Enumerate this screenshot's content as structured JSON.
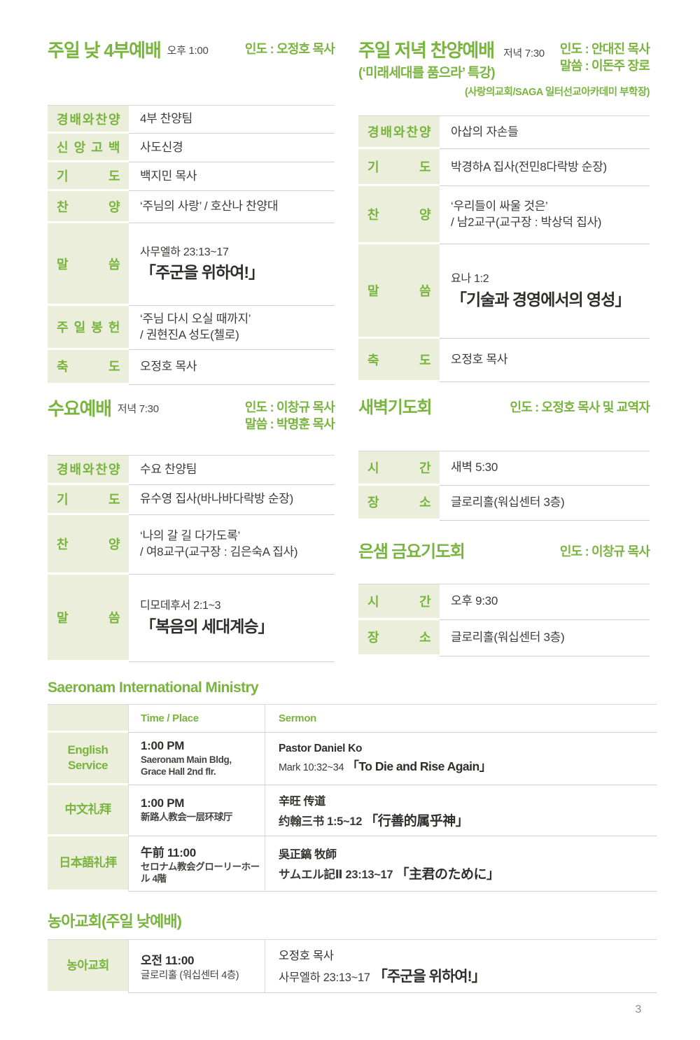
{
  "colors": {
    "accent_green": "#78b43e",
    "label_bg": "#eaeedb",
    "divider": "#cfcfcd",
    "text": "#3b3b39"
  },
  "page": {
    "number": "3"
  },
  "sections": {
    "sunday_day": {
      "title": "주일 낮 4부예배",
      "time": "오후 1:00",
      "leader": "인도 : 오정호 목사",
      "rows": [
        {
          "label": "경배와찬양",
          "text": "4부 찬양팀"
        },
        {
          "label": "신앙고백",
          "text": "사도신경"
        },
        {
          "label": "기도",
          "text": "백지민 목사"
        },
        {
          "label": "찬양",
          "text": "‘주님의 사랑’ / 호산나 찬양대"
        },
        {
          "label": "말씀",
          "scripture": "사무엘하 23:13~17",
          "sermon": "「주군을 위하여!」"
        },
        {
          "label": "주일봉헌",
          "text": "‘주님 다시 오실 때까지’",
          "text2": "/ 권현진A 성도(첼로)"
        },
        {
          "label": "축도",
          "text": "오정호 목사"
        }
      ]
    },
    "sunday_evening": {
      "title": "주일 저녁 찬양예배",
      "time": "저녁 7:30",
      "subtitle": "(‘미래세대를 품으라’ 특강)",
      "leader": "인도 : 안대진 목사",
      "speaker": "말씀 : 이돈주 장로",
      "speaker_note": "(사랑의교회/SAGA 일터선교아카데미 부학장)",
      "rows": [
        {
          "label": "경배와찬양",
          "text": "아삽의 자손들"
        },
        {
          "label": "기도",
          "text": "박경하A 집사(전민8다락방 순장)"
        },
        {
          "label": "찬양",
          "text": "‘우리들이 싸울 것은’",
          "text2": "/ 남2교구(교구장 : 박상덕 집사)"
        },
        {
          "label": "말씀",
          "scripture": "요나 1:2",
          "sermon": "「기술과 경영에서의 영성」"
        },
        {
          "label": "축도",
          "text": "오정호 목사"
        }
      ]
    },
    "wednesday": {
      "title": "수요예배",
      "time": "저녁 7:30",
      "leader": "인도 : 이창규 목사",
      "speaker": "말씀 : 박명훈 목사",
      "rows": [
        {
          "label": "경배와찬양",
          "text": "수요 찬양팀"
        },
        {
          "label": "기도",
          "text": "유수영 집사(바나바다락방 순장)"
        },
        {
          "label": "찬양",
          "text": "‘나의 갈 길 다가도록’",
          "text2": "/ 여8교구(교구장 : 김은숙A 집사)"
        },
        {
          "label": "말씀",
          "scripture": "디모데후서 2:1~3",
          "sermon": "「복음의 세대계승」"
        }
      ]
    },
    "dawn_prayer": {
      "title": "새벽기도회",
      "leader": "인도 : 오정호 목사 및 교역자",
      "rows": [
        {
          "label": "시간",
          "text": "새벽 5:30"
        },
        {
          "label": "장소",
          "text": "글로리홀(워십센터 3층)"
        }
      ]
    },
    "friday_prayer": {
      "title": "은샘 금요기도회",
      "leader": "인도 : 이창규 목사",
      "rows": [
        {
          "label": "시간",
          "text": "오후 9:30"
        },
        {
          "label": "장소",
          "text": "글로리홀(워십센터 3층)"
        }
      ]
    },
    "international": {
      "title": "Saeronam International Ministry",
      "col_time": "Time / Place",
      "col_sermon": "Sermon",
      "rows": [
        {
          "label": "English Service",
          "time": "1:00 PM",
          "place": "Saeronam Main Bldg,",
          "place2": "Grace Hall 2nd flr.",
          "preacher": "Pastor Daniel Ko",
          "scripture": "Mark 10:32~34",
          "sermon": "「To Die and Rise Again」"
        },
        {
          "label": "中文礼拜",
          "time": "1:00 PM",
          "place": "新路人教会一层环球厅",
          "preacher": "辛旺 传道",
          "scripture": "约翰三书 1:5~12",
          "sermon": "「行善的属乎神」"
        },
        {
          "label": "日本語礼拝",
          "time": "午前 11:00",
          "place": "セロナム教会グローリーホール 4階",
          "preacher": "吳正鎬 牧師",
          "scripture": "サムエル記Ⅱ 23:13~17",
          "sermon": "「主君のために」"
        }
      ]
    },
    "deaf_church": {
      "title": "농아교회(주일 낮예배)",
      "rows": [
        {
          "label": "농아교회",
          "time": "오전 11:00",
          "place": "글로리홀 (워십센터 4층)",
          "preacher": "오정호 목사",
          "scripture": "사무엘하 23:13~17",
          "sermon": "「주군을 위하여!」"
        }
      ]
    }
  }
}
